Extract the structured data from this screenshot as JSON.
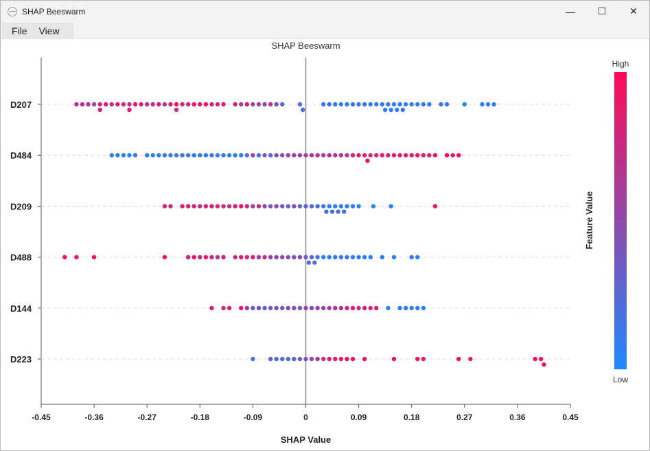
{
  "window": {
    "title": "SHAP Beeswarm",
    "controls": {
      "minimize": "—",
      "maximize": "☐",
      "close": "✕"
    }
  },
  "menu": {
    "items": [
      "File",
      "View"
    ]
  },
  "colors": {
    "low": "#1e88ff",
    "high": "#ff0a55",
    "zero_line": "#8c8c8c",
    "grid": "#dcdcdc"
  },
  "chart_data": {
    "type": "scatter",
    "title": "SHAP Beeswarm",
    "xlabel": "SHAP Value",
    "ylabel": "",
    "xlim": [
      -0.45,
      0.45
    ],
    "xticks": [
      "-0.45",
      "-0.36",
      "-0.27",
      "-0.18",
      "-0.09",
      "0",
      "0.09",
      "0.18",
      "0.27",
      "0.36",
      "0.45"
    ],
    "grid": true,
    "colorbar": {
      "label": "Feature Value",
      "high_label": "High",
      "low_label": "Low"
    },
    "features": [
      {
        "name": "D207",
        "points": [
          [
            -0.39,
            0.75
          ],
          [
            -0.38,
            0.7
          ],
          [
            -0.37,
            0.6
          ],
          [
            -0.36,
            0.55
          ],
          [
            -0.35,
            0.7
          ],
          [
            -0.35,
            0.8
          ],
          [
            -0.34,
            0.85
          ],
          [
            -0.33,
            0.65
          ],
          [
            -0.32,
            0.9
          ],
          [
            -0.31,
            0.75
          ],
          [
            -0.3,
            0.7
          ],
          [
            -0.3,
            0.85
          ],
          [
            -0.29,
            0.9
          ],
          [
            -0.28,
            0.8
          ],
          [
            -0.27,
            0.7
          ],
          [
            -0.26,
            0.75
          ],
          [
            -0.25,
            0.8
          ],
          [
            -0.24,
            0.6
          ],
          [
            -0.23,
            0.85
          ],
          [
            -0.22,
            0.95
          ],
          [
            -0.22,
            0.7
          ],
          [
            -0.21,
            0.8
          ],
          [
            -0.2,
            0.75
          ],
          [
            -0.19,
            0.9
          ],
          [
            -0.18,
            0.85
          ],
          [
            -0.17,
            0.95
          ],
          [
            -0.16,
            0.8
          ],
          [
            -0.15,
            0.7
          ],
          [
            -0.14,
            0.85
          ],
          [
            -0.12,
            0.75
          ],
          [
            -0.11,
            0.6
          ],
          [
            -0.1,
            0.9
          ],
          [
            -0.09,
            0.5
          ],
          [
            -0.08,
            0.55
          ],
          [
            -0.07,
            0.45
          ],
          [
            -0.06,
            0.7
          ],
          [
            -0.05,
            0.4
          ],
          [
            -0.04,
            0.3
          ],
          [
            -0.01,
            0.25
          ],
          [
            -0.005,
            0.2
          ],
          [
            0.03,
            0.15
          ],
          [
            0.04,
            0.2
          ],
          [
            0.05,
            0.1
          ],
          [
            0.06,
            0.15
          ],
          [
            0.07,
            0.05
          ],
          [
            0.08,
            0.1
          ],
          [
            0.09,
            0.15
          ],
          [
            0.1,
            0.1
          ],
          [
            0.11,
            0.05
          ],
          [
            0.12,
            0.15
          ],
          [
            0.13,
            0.1
          ],
          [
            0.135,
            0.05
          ],
          [
            0.14,
            0.15
          ],
          [
            0.145,
            0.08
          ],
          [
            0.15,
            0.12
          ],
          [
            0.155,
            0.05
          ],
          [
            0.16,
            0.1
          ],
          [
            0.165,
            0.15
          ],
          [
            0.17,
            0.08
          ],
          [
            0.18,
            0.12
          ],
          [
            0.19,
            0.1
          ],
          [
            0.2,
            0.15
          ],
          [
            0.21,
            0.08
          ],
          [
            0.23,
            0.12
          ],
          [
            0.24,
            0.1
          ],
          [
            0.27,
            0.05
          ],
          [
            0.3,
            0.05
          ],
          [
            0.31,
            0.1
          ],
          [
            0.32,
            0.05
          ]
        ]
      },
      {
        "name": "D484",
        "points": [
          [
            -0.33,
            0.05
          ],
          [
            -0.32,
            0.1
          ],
          [
            -0.31,
            0.08
          ],
          [
            -0.3,
            0.05
          ],
          [
            -0.29,
            0.12
          ],
          [
            -0.27,
            0.1
          ],
          [
            -0.26,
            0.05
          ],
          [
            -0.25,
            0.15
          ],
          [
            -0.24,
            0.1
          ],
          [
            -0.23,
            0.08
          ],
          [
            -0.22,
            0.12
          ],
          [
            -0.21,
            0.2
          ],
          [
            -0.2,
            0.15
          ],
          [
            -0.19,
            0.1
          ],
          [
            -0.18,
            0.12
          ],
          [
            -0.17,
            0.08
          ],
          [
            -0.16,
            0.15
          ],
          [
            -0.15,
            0.1
          ],
          [
            -0.14,
            0.12
          ],
          [
            -0.13,
            0.05
          ],
          [
            -0.12,
            0.15
          ],
          [
            -0.11,
            0.08
          ],
          [
            -0.1,
            0.2
          ],
          [
            -0.09,
            0.5
          ],
          [
            -0.08,
            0.15
          ],
          [
            -0.07,
            0.35
          ],
          [
            -0.06,
            0.3
          ],
          [
            -0.05,
            0.4
          ],
          [
            -0.04,
            0.45
          ],
          [
            -0.03,
            0.5
          ],
          [
            -0.02,
            0.55
          ],
          [
            -0.01,
            0.6
          ],
          [
            0.0,
            0.55
          ],
          [
            0.01,
            0.6
          ],
          [
            0.02,
            0.65
          ],
          [
            0.03,
            0.55
          ],
          [
            0.04,
            0.7
          ],
          [
            0.05,
            0.6
          ],
          [
            0.06,
            0.75
          ],
          [
            0.07,
            0.65
          ],
          [
            0.08,
            0.8
          ],
          [
            0.09,
            0.85
          ],
          [
            0.1,
            0.8
          ],
          [
            0.105,
            0.9
          ],
          [
            0.11,
            0.75
          ],
          [
            0.12,
            0.85
          ],
          [
            0.13,
            0.9
          ],
          [
            0.14,
            0.8
          ],
          [
            0.15,
            0.85
          ],
          [
            0.16,
            0.9
          ],
          [
            0.17,
            0.8
          ],
          [
            0.18,
            0.85
          ],
          [
            0.19,
            0.9
          ],
          [
            0.2,
            0.85
          ],
          [
            0.21,
            0.8
          ],
          [
            0.22,
            0.9
          ],
          [
            0.24,
            0.95
          ],
          [
            0.25,
            0.85
          ],
          [
            0.26,
            0.95
          ]
        ]
      },
      {
        "name": "D209",
        "points": [
          [
            -0.24,
            0.8
          ],
          [
            -0.23,
            0.75
          ],
          [
            -0.21,
            0.85
          ],
          [
            -0.2,
            0.9
          ],
          [
            -0.19,
            0.8
          ],
          [
            -0.18,
            0.7
          ],
          [
            -0.17,
            0.85
          ],
          [
            -0.16,
            0.9
          ],
          [
            -0.15,
            0.75
          ],
          [
            -0.14,
            0.8
          ],
          [
            -0.13,
            0.7
          ],
          [
            -0.12,
            0.85
          ],
          [
            -0.11,
            0.9
          ],
          [
            -0.1,
            0.75
          ],
          [
            -0.09,
            0.6
          ],
          [
            -0.08,
            0.7
          ],
          [
            -0.07,
            0.55
          ],
          [
            -0.06,
            0.4
          ],
          [
            -0.05,
            0.5
          ],
          [
            -0.04,
            0.35
          ],
          [
            -0.03,
            0.3
          ],
          [
            -0.02,
            0.45
          ],
          [
            -0.01,
            0.25
          ],
          [
            0.0,
            0.3
          ],
          [
            0.01,
            0.25
          ],
          [
            0.02,
            0.2
          ],
          [
            0.03,
            0.15
          ],
          [
            0.035,
            0.2
          ],
          [
            0.04,
            0.1
          ],
          [
            0.045,
            0.15
          ],
          [
            0.05,
            0.12
          ],
          [
            0.055,
            0.2
          ],
          [
            0.06,
            0.1
          ],
          [
            0.065,
            0.15
          ],
          [
            0.07,
            0.08
          ],
          [
            0.08,
            0.1
          ],
          [
            0.09,
            0.05
          ],
          [
            0.115,
            0.05
          ],
          [
            0.145,
            0.05
          ],
          [
            0.22,
            0.95
          ]
        ]
      },
      {
        "name": "D488",
        "points": [
          [
            -0.41,
            0.95
          ],
          [
            -0.39,
            0.9
          ],
          [
            -0.36,
            0.95
          ],
          [
            -0.24,
            0.95
          ],
          [
            -0.2,
            0.8
          ],
          [
            -0.19,
            0.9
          ],
          [
            -0.18,
            0.7
          ],
          [
            -0.17,
            0.85
          ],
          [
            -0.16,
            0.75
          ],
          [
            -0.15,
            0.6
          ],
          [
            -0.14,
            0.8
          ],
          [
            -0.12,
            0.7
          ],
          [
            -0.11,
            0.85
          ],
          [
            -0.1,
            0.75
          ],
          [
            -0.09,
            0.8
          ],
          [
            -0.08,
            0.6
          ],
          [
            -0.07,
            0.7
          ],
          [
            -0.06,
            0.5
          ],
          [
            -0.05,
            0.55
          ],
          [
            -0.04,
            0.45
          ],
          [
            -0.03,
            0.5
          ],
          [
            -0.02,
            0.4
          ],
          [
            -0.01,
            0.45
          ],
          [
            0.0,
            0.35
          ],
          [
            0.005,
            0.3
          ],
          [
            0.01,
            0.25
          ],
          [
            0.015,
            0.2
          ],
          [
            0.02,
            0.15
          ],
          [
            0.03,
            0.1
          ],
          [
            0.04,
            0.08
          ],
          [
            0.05,
            0.12
          ],
          [
            0.06,
            0.1
          ],
          [
            0.07,
            0.15
          ],
          [
            0.08,
            0.05
          ],
          [
            0.09,
            0.1
          ],
          [
            0.1,
            0.08
          ],
          [
            0.11,
            0.05
          ],
          [
            0.13,
            0.1
          ],
          [
            0.15,
            0.05
          ],
          [
            0.18,
            0.08
          ],
          [
            0.19,
            0.05
          ]
        ]
      },
      {
        "name": "D144",
        "points": [
          [
            -0.16,
            0.8
          ],
          [
            -0.14,
            0.75
          ],
          [
            -0.13,
            0.85
          ],
          [
            -0.11,
            0.9
          ],
          [
            -0.1,
            0.6
          ],
          [
            -0.09,
            0.35
          ],
          [
            -0.08,
            0.4
          ],
          [
            -0.07,
            0.3
          ],
          [
            -0.06,
            0.35
          ],
          [
            -0.05,
            0.45
          ],
          [
            -0.04,
            0.4
          ],
          [
            -0.03,
            0.5
          ],
          [
            -0.02,
            0.45
          ],
          [
            -0.01,
            0.4
          ],
          [
            0.0,
            0.5
          ],
          [
            0.01,
            0.45
          ],
          [
            0.02,
            0.55
          ],
          [
            0.03,
            0.5
          ],
          [
            0.04,
            0.55
          ],
          [
            0.05,
            0.6
          ],
          [
            0.06,
            0.7
          ],
          [
            0.07,
            0.75
          ],
          [
            0.08,
            0.85
          ],
          [
            0.09,
            0.7
          ],
          [
            0.1,
            0.8
          ],
          [
            0.11,
            0.75
          ],
          [
            0.12,
            0.85
          ],
          [
            0.14,
            0.05
          ],
          [
            0.16,
            0.1
          ],
          [
            0.17,
            0.08
          ],
          [
            0.18,
            0.05
          ],
          [
            0.19,
            0.1
          ],
          [
            0.2,
            0.05
          ]
        ]
      },
      {
        "name": "D223",
        "points": [
          [
            -0.09,
            0.15
          ],
          [
            -0.06,
            0.3
          ],
          [
            -0.05,
            0.25
          ],
          [
            -0.04,
            0.2
          ],
          [
            -0.03,
            0.25
          ],
          [
            -0.02,
            0.3
          ],
          [
            -0.01,
            0.35
          ],
          [
            0.0,
            0.4
          ],
          [
            0.01,
            0.5
          ],
          [
            0.02,
            0.6
          ],
          [
            0.03,
            0.7
          ],
          [
            0.04,
            0.8
          ],
          [
            0.05,
            0.85
          ],
          [
            0.06,
            0.9
          ],
          [
            0.07,
            0.95
          ],
          [
            0.08,
            0.9
          ],
          [
            0.1,
            0.95
          ],
          [
            0.15,
            0.9
          ],
          [
            0.19,
            0.95
          ],
          [
            0.2,
            0.9
          ],
          [
            0.26,
            0.95
          ],
          [
            0.28,
            0.9
          ],
          [
            0.39,
            0.95
          ],
          [
            0.4,
            0.9
          ],
          [
            0.405,
            0.95
          ]
        ]
      }
    ]
  }
}
